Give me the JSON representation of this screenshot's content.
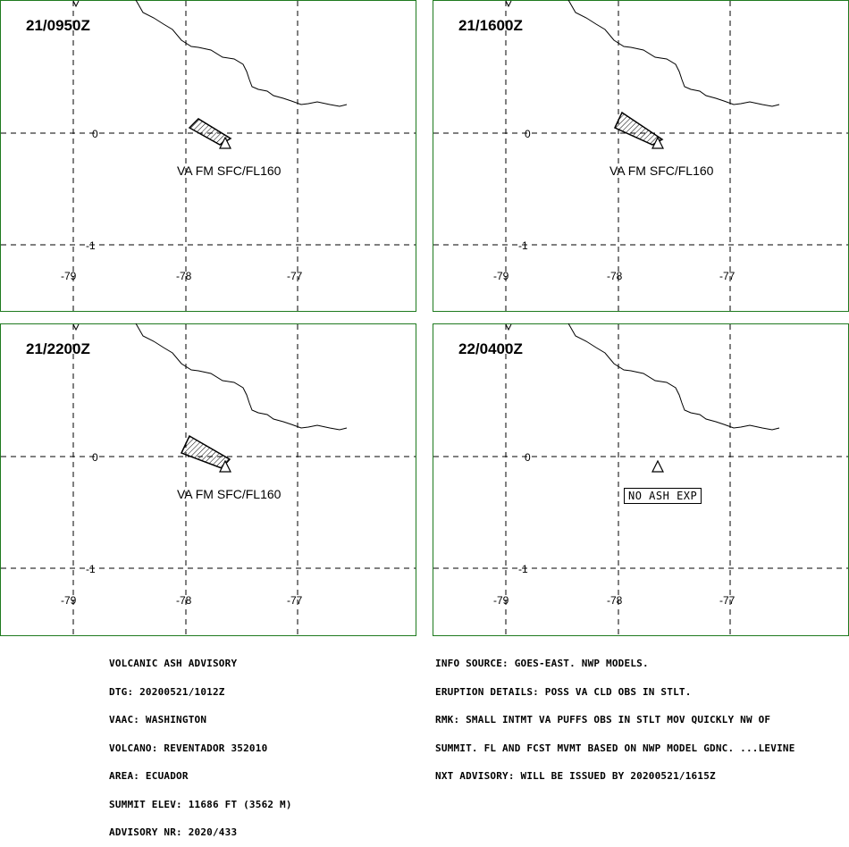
{
  "panels": [
    {
      "time": "21/0950Z",
      "ash_label": "VA FM SFC/FL160",
      "no_ash": "",
      "plume": [
        [
          212,
          143
        ],
        [
          222,
          133
        ],
        [
          258,
          155
        ],
        [
          246,
          162
        ]
      ]
    },
    {
      "time": "21/1600Z",
      "ash_label": "VA FM SFC/FL160",
      "no_ash": "",
      "plume": [
        [
          688,
          143
        ],
        [
          696,
          126
        ],
        [
          741,
          156
        ],
        [
          730,
          162
        ]
      ]
    },
    {
      "time": "21/2200Z",
      "ash_label": "VA FM SFC/FL160",
      "no_ash": "",
      "plume": [
        [
          203,
          507
        ],
        [
          212,
          488
        ],
        [
          257,
          514
        ],
        [
          248,
          524
        ]
      ]
    },
    {
      "time": "22/0400Z",
      "ash_label": "",
      "no_ash": "NO ASH EXP",
      "plume": []
    }
  ],
  "axes": {
    "lon_ticks": [
      "-79",
      "-78",
      "-77"
    ],
    "lat_ticks": [
      "0",
      "-1"
    ]
  },
  "left_info": [
    "VOLCANIC ASH ADVISORY",
    "DTG: 20200521/1012Z",
    "VAAC: WASHINGTON",
    "VOLCANO: REVENTADOR 352010",
    "AREA: ECUADOR",
    "SUMMIT ELEV: 11686 FT (3562 M)",
    "ADVISORY NR: 2020/433"
  ],
  "right_info": [
    "INFO SOURCE: GOES-EAST. NWP MODELS.",
    "ERUPTION DETAILS: POSS VA CLD OBS IN STLT.",
    "RMK: SMALL INTMT VA PUFFS OBS IN STLT MOV QUICKLY NW OF",
    "SUMMIT. FL AND FCST MVMT BASED ON NWP MODEL GDNC. ...LEVINE",
    "NXT ADVISORY: WILL BE ISSUED BY 20200521/1615Z"
  ],
  "colors": {
    "frame": "#1f7a1f",
    "grid": "#000000",
    "coast": "#000000"
  },
  "icons": {
    "volcano": "volcano-triangle-icon"
  }
}
